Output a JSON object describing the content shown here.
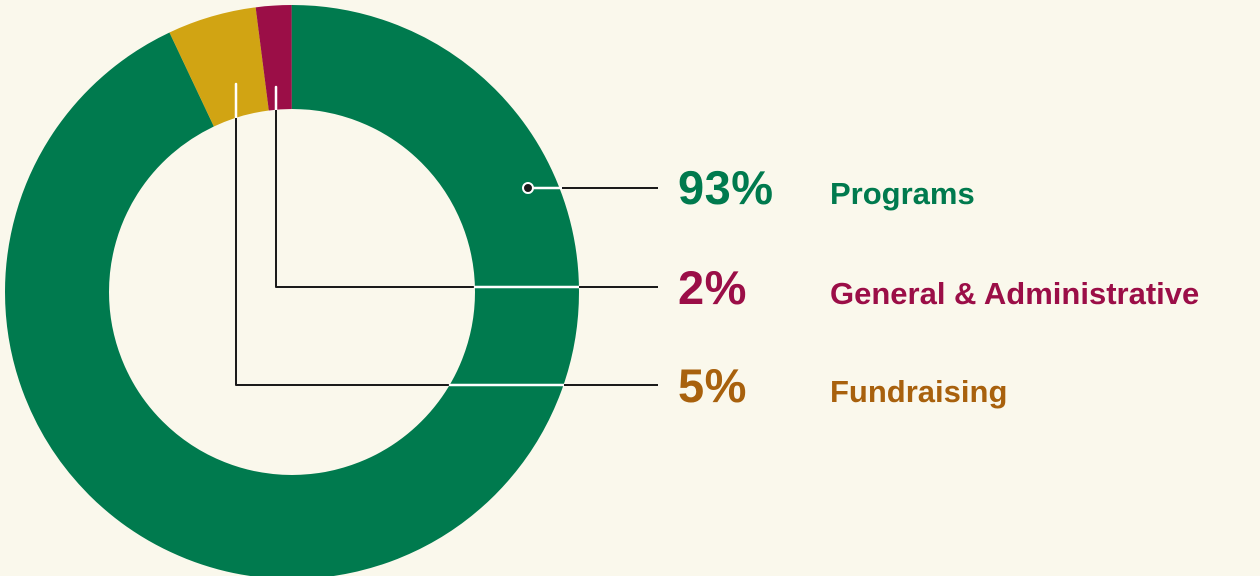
{
  "page": {
    "background_color": "#faf8ec"
  },
  "chart_data": {
    "type": "pie",
    "subtype": "donut",
    "title": "",
    "legend_position": "right",
    "total": 100,
    "slices": [
      {
        "label": "Programs",
        "value": 93,
        "color": "#007a4e"
      },
      {
        "label": "Fundraising",
        "value": 5,
        "color": "#d1a413"
      },
      {
        "label": "General & Administrative",
        "value": 2,
        "color": "#9b0e47"
      }
    ],
    "legend": [
      {
        "pct": "93%",
        "label": "Programs",
        "color": "#007a4e"
      },
      {
        "pct": "2%",
        "label": "General & Administrative",
        "color": "#9b0e47"
      },
      {
        "pct": "5%",
        "label": "Fundraising",
        "color": "#a8610d"
      }
    ]
  }
}
